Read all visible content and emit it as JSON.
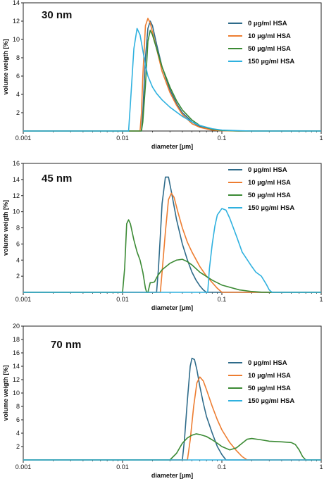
{
  "colors": {
    "0 µg/ml HSA": "#2e6b8a",
    "10 µg/ml HSA": "#ed7d31",
    "50 µg/ml HSA": "#3b8a34",
    "150 µg/ml HSA": "#2fb1df"
  },
  "chart_data": [
    {
      "type": "line",
      "title": "30 nm",
      "xlabel": "diameter [µm]",
      "ylabel": "volume weigth [%]",
      "xscale": "log",
      "xlim": [
        0.001,
        1
      ],
      "ylim": [
        0,
        14
      ],
      "xticks": [
        "0.001",
        "0.01",
        "0.1",
        "1"
      ],
      "yticks": [
        2,
        4,
        6,
        8,
        10,
        12,
        14
      ],
      "grid": false,
      "legend": "top-right",
      "series": [
        {
          "name": "0 µg/ml HSA",
          "x": [
            0.001,
            0.0155,
            0.016,
            0.017,
            0.018,
            0.019,
            0.02,
            0.022,
            0.025,
            0.03,
            0.035,
            0.04,
            0.05,
            0.06,
            0.08,
            0.1,
            0.15,
            0.2,
            1
          ],
          "y": [
            0,
            0,
            2,
            8,
            11.2,
            12.0,
            11.5,
            9.5,
            7.0,
            4.5,
            3.0,
            2.0,
            1.0,
            0.5,
            0.15,
            0.05,
            0,
            0,
            0
          ]
        },
        {
          "name": "10 µg/ml HSA",
          "x": [
            0.001,
            0.015,
            0.0155,
            0.016,
            0.017,
            0.018,
            0.019,
            0.02,
            0.022,
            0.025,
            0.03,
            0.035,
            0.04,
            0.05,
            0.06,
            0.08,
            0.1,
            0.15,
            1
          ],
          "y": [
            0,
            0,
            2,
            6,
            11.5,
            12.3,
            11.8,
            10.8,
            9.0,
            6.5,
            4.2,
            2.8,
            1.8,
            0.8,
            0.4,
            0.1,
            0.03,
            0,
            0
          ]
        },
        {
          "name": "50 µg/ml HSA",
          "x": [
            0.001,
            0.0155,
            0.016,
            0.017,
            0.018,
            0.019,
            0.02,
            0.022,
            0.025,
            0.03,
            0.035,
            0.04,
            0.05,
            0.06,
            0.08,
            0.1,
            0.15,
            1
          ],
          "y": [
            0,
            0,
            1,
            5,
            9.8,
            11.0,
            10.5,
            9.0,
            7.0,
            4.8,
            3.3,
            2.3,
            1.2,
            0.6,
            0.2,
            0.06,
            0,
            0
          ]
        },
        {
          "name": "150 µg/ml HSA",
          "x": [
            0.001,
            0.0115,
            0.012,
            0.013,
            0.014,
            0.015,
            0.016,
            0.017,
            0.018,
            0.02,
            0.022,
            0.025,
            0.03,
            0.04,
            0.05,
            0.06,
            0.08,
            0.1,
            0.15,
            0.2,
            1
          ],
          "y": [
            0,
            0,
            3,
            9,
            11.2,
            10.5,
            8.8,
            7.2,
            6.0,
            4.8,
            4.1,
            3.4,
            2.6,
            1.6,
            1.0,
            0.6,
            0.25,
            0.1,
            0.03,
            0,
            0
          ]
        }
      ]
    },
    {
      "type": "line",
      "title": "45 nm",
      "xlabel": "diameter [µm]",
      "ylabel": "volume weigth [%]",
      "xscale": "log",
      "xlim": [
        0.001,
        1
      ],
      "ylim": [
        0,
        16
      ],
      "xticks": [
        "0.001",
        "0.01",
        "0.1",
        "1"
      ],
      "yticks": [
        2,
        4,
        6,
        8,
        10,
        12,
        14,
        16
      ],
      "grid": false,
      "legend": "top-right",
      "series": [
        {
          "name": "0 µg/ml HSA",
          "x": [
            0.001,
            0.022,
            0.023,
            0.024,
            0.025,
            0.027,
            0.029,
            0.031,
            0.035,
            0.04,
            0.045,
            0.05,
            0.055,
            0.06,
            0.065,
            0.07,
            1
          ],
          "y": [
            0,
            0,
            3,
            7,
            11,
            14.3,
            14.3,
            12.5,
            9.0,
            6.0,
            4.0,
            2.5,
            1.5,
            0.8,
            0.3,
            0,
            0
          ]
        },
        {
          "name": "10 µg/ml HSA",
          "x": [
            0.001,
            0.024,
            0.025,
            0.027,
            0.029,
            0.031,
            0.033,
            0.036,
            0.04,
            0.045,
            0.05,
            0.06,
            0.07,
            0.08,
            0.09,
            0.1,
            1
          ],
          "y": [
            0,
            0,
            2.5,
            7.5,
            11.5,
            12.3,
            11.8,
            10.0,
            8.0,
            6.2,
            5.0,
            3.2,
            2.0,
            1.2,
            0.5,
            0,
            0
          ]
        },
        {
          "name": "50 µg/ml HSA",
          "x": [
            0.001,
            0.01,
            0.0105,
            0.011,
            0.0115,
            0.012,
            0.013,
            0.014,
            0.015,
            0.016,
            0.017,
            0.0175,
            0.018,
            0.019,
            0.02,
            0.021,
            0.022,
            0.023,
            0.025,
            0.03,
            0.035,
            0.04,
            0.045,
            0.05,
            0.06,
            0.08,
            0.1,
            0.15,
            0.2,
            0.25,
            0.3,
            1
          ],
          "y": [
            0,
            0,
            3,
            8.5,
            9.0,
            8.5,
            6.5,
            5.0,
            4.0,
            2.5,
            0.5,
            0,
            0,
            1.2,
            1.2,
            1.3,
            1.8,
            2.2,
            2.8,
            3.6,
            4.0,
            4.1,
            3.8,
            3.4,
            2.5,
            1.5,
            0.9,
            0.3,
            0.1,
            0.02,
            0,
            0
          ]
        },
        {
          "name": "150 µg/ml HSA",
          "x": [
            0.001,
            0.072,
            0.075,
            0.08,
            0.085,
            0.09,
            0.1,
            0.11,
            0.12,
            0.14,
            0.16,
            0.2,
            0.22,
            0.25,
            0.28,
            0.3,
            0.32,
            1
          ],
          "y": [
            0,
            0,
            3,
            6,
            8.2,
            9.6,
            10.4,
            10.2,
            9.2,
            7.0,
            5.0,
            3.2,
            2.5,
            2.0,
            1.0,
            0.3,
            0,
            0
          ]
        }
      ]
    },
    {
      "type": "line",
      "title": "70 nm",
      "xlabel": "diameter [µm]",
      "ylabel": "volume weigth [%]",
      "xscale": "log",
      "xlim": [
        0.001,
        1
      ],
      "ylim": [
        0,
        20
      ],
      "xticks": [
        "0.001",
        "0.01",
        "0.1",
        "1"
      ],
      "yticks": [
        2,
        4,
        6,
        8,
        10,
        12,
        14,
        16,
        18,
        20
      ],
      "grid": false,
      "legend": "right",
      "series": [
        {
          "name": "0 µg/ml HSA",
          "x": [
            0.001,
            0.04,
            0.042,
            0.045,
            0.048,
            0.05,
            0.053,
            0.056,
            0.06,
            0.065,
            0.07,
            0.08,
            0.09,
            0.1,
            0.11,
            1
          ],
          "y": [
            0,
            0,
            3,
            9,
            14,
            15.2,
            15.0,
            13.5,
            11.0,
            8.5,
            6.5,
            4.0,
            2.0,
            0.8,
            0,
            0
          ]
        },
        {
          "name": "10 µg/ml HSA",
          "x": [
            0.001,
            0.045,
            0.048,
            0.052,
            0.056,
            0.06,
            0.065,
            0.07,
            0.08,
            0.09,
            0.1,
            0.11,
            0.12,
            0.14,
            0.16,
            0.18,
            1
          ],
          "y": [
            0,
            0,
            3,
            8,
            11.5,
            12.4,
            11.8,
            10.5,
            8.0,
            6.0,
            4.5,
            3.5,
            2.6,
            1.4,
            0.5,
            0,
            0
          ]
        },
        {
          "name": "50 µg/ml HSA",
          "x": [
            0.001,
            0.03,
            0.035,
            0.04,
            0.045,
            0.05,
            0.055,
            0.06,
            0.07,
            0.08,
            0.09,
            0.1,
            0.12,
            0.14,
            0.16,
            0.18,
            0.2,
            0.25,
            0.3,
            0.4,
            0.5,
            0.55,
            0.6,
            0.65,
            0.7,
            1
          ],
          "y": [
            0,
            0,
            1.0,
            2.5,
            3.3,
            3.7,
            3.9,
            3.8,
            3.5,
            3.0,
            2.5,
            2.0,
            1.5,
            1.8,
            2.5,
            3.1,
            3.2,
            3.0,
            2.8,
            2.7,
            2.6,
            2.3,
            1.5,
            0.5,
            0,
            0
          ]
        },
        {
          "name": "150 µg/ml HSA",
          "x": [
            0.001,
            1
          ],
          "y": [
            0,
            0
          ]
        }
      ]
    }
  ]
}
